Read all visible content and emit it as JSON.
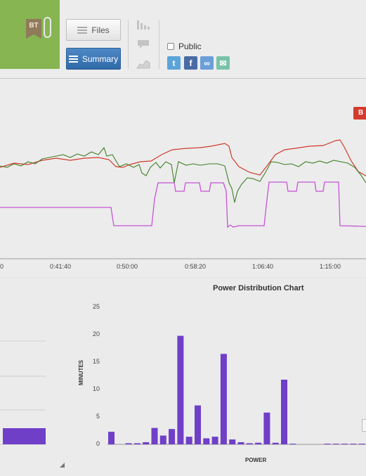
{
  "toolbar": {
    "badge": "BT",
    "files_label": "Files",
    "summary_label": "Summary",
    "public_label": "Public",
    "share": [
      {
        "name": "twitter-icon",
        "color": "#5ba4d9",
        "glyph": "t"
      },
      {
        "name": "facebook-icon",
        "color": "#4a6aa5",
        "glyph": "f"
      },
      {
        "name": "link-icon",
        "color": "#6a9fd8",
        "glyph": "∞"
      },
      {
        "name": "email-icon",
        "color": "#79c3a8",
        "glyph": "✉"
      }
    ]
  },
  "timeline": {
    "marker_label": "B",
    "x_ticks": [
      "0",
      "0:41:40",
      "0:50:00",
      "0:58:20",
      "1:06:40",
      "1:15:00"
    ],
    "colors": {
      "series_red": "#cf3b2c",
      "series_green": "#3f7f25",
      "series_magenta": "#c653d6"
    }
  },
  "chart_data": {
    "type": "bar",
    "title": "Power Distribution Chart",
    "xlabel": "POWER",
    "ylabel": "MINUTES",
    "ylim": [
      0,
      25
    ],
    "y_ticks": [
      "0",
      "5",
      "10",
      "15",
      "20",
      "25"
    ],
    "values": [
      2.3,
      0,
      0.2,
      0.2,
      0.4,
      3,
      1.6,
      2.8,
      19.8,
      1.4,
      7.1,
      1.1,
      1.4,
      16.5,
      0.9,
      0.4,
      0.2,
      0.3,
      5.8,
      0.3,
      11.8,
      0.1,
      0,
      0,
      0,
      0.1,
      0.1,
      0.1,
      0.1,
      0.1
    ],
    "color": "#6f3fc8"
  },
  "left_bar": {
    "value": 3
  }
}
